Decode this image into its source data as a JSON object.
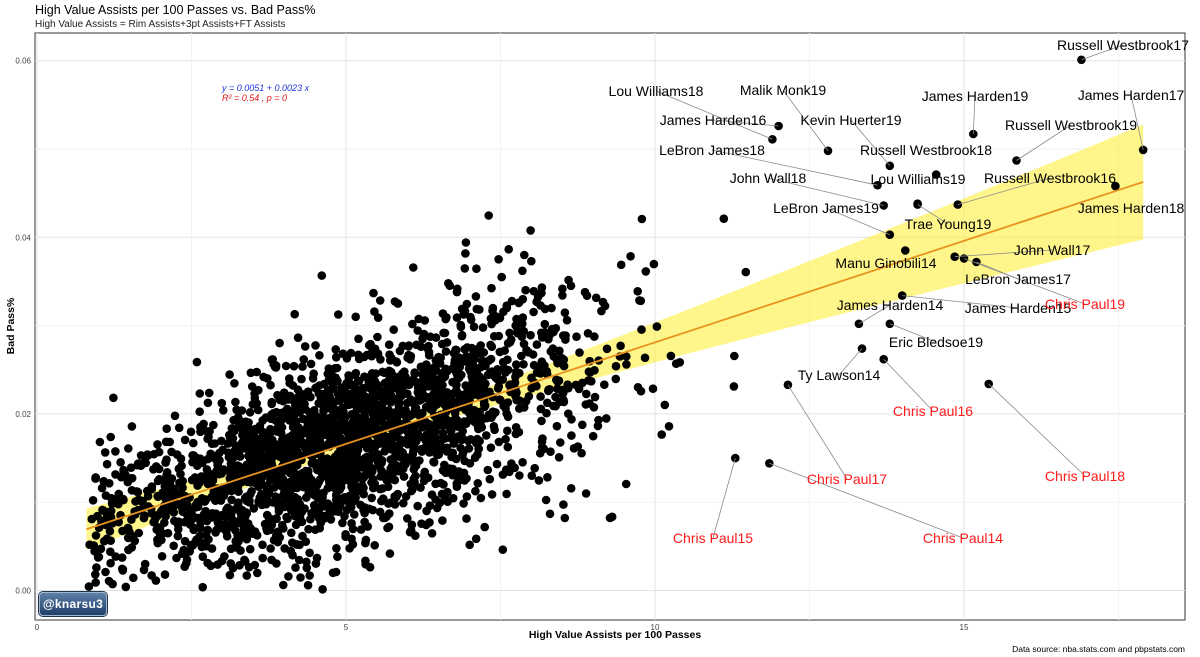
{
  "chart_data": {
    "type": "scatter",
    "title": "High Value Assists per 100 Passes vs. Bad Pass%",
    "subtitle": "High Value Assists = Rim Assists+3pt Assists+FT Assists",
    "xlabel": "High Value Assists per 100 Passes",
    "ylabel": "Bad Pass%",
    "xlim": [
      0,
      18.5
    ],
    "ylim": [
      -0.0035,
      0.0635
    ],
    "x_ticks": [
      "0",
      "5",
      "10",
      "15"
    ],
    "x_tick_values": [
      0,
      5,
      10,
      15
    ],
    "y_ticks": [
      "0.00",
      "0.02",
      "0.04",
      "0.06"
    ],
    "y_tick_values": [
      0.0,
      0.02,
      0.04,
      0.06
    ],
    "grid": true,
    "regression": {
      "equation": "y = 0.0051 + 0.0023 x",
      "stats": "R² = 0.54 , p = 0",
      "intercept": 0.0051,
      "slope": 0.0023,
      "x_range": [
        0.8,
        17.9
      ],
      "line_color": "#e8921f",
      "band_color": "#ffef2b"
    },
    "background_cloud": {
      "description_count": 2400,
      "x_range": [
        0.8,
        12
      ],
      "y_range": [
        0.0,
        0.049
      ]
    },
    "labeled_points": [
      {
        "name": "Russell Westbrook17",
        "x": 16.9,
        "y": 0.0601,
        "color": "black"
      },
      {
        "name": "Russell Westbrook19",
        "x": 15.85,
        "y": 0.0487,
        "color": "black"
      },
      {
        "name": "Russell Westbrook18",
        "x": 14.55,
        "y": 0.0471,
        "color": "black"
      },
      {
        "name": "Russell Westbrook16",
        "x": 14.9,
        "y": 0.0437,
        "color": "black"
      },
      {
        "name": "James Harden19",
        "x": 15.15,
        "y": 0.0517,
        "color": "black"
      },
      {
        "name": "James Harden17",
        "x": 17.9,
        "y": 0.0499,
        "color": "black"
      },
      {
        "name": "James Harden18",
        "x": 17.45,
        "y": 0.0458,
        "color": "black"
      },
      {
        "name": "James Harden16",
        "x": 12.0,
        "y": 0.0526,
        "color": "black"
      },
      {
        "name": "James Harden15",
        "x": 14.0,
        "y": 0.0334,
        "color": "black"
      },
      {
        "name": "James Harden14",
        "x": 13.3,
        "y": 0.0302,
        "color": "black"
      },
      {
        "name": "Lou Williams18",
        "x": 11.9,
        "y": 0.0511,
        "color": "black"
      },
      {
        "name": "Lou Williams19",
        "x": 14.25,
        "y": 0.0438,
        "color": "black"
      },
      {
        "name": "Malik Monk19",
        "x": 12.8,
        "y": 0.0498,
        "color": "black"
      },
      {
        "name": "Kevin Huerter19",
        "x": 13.8,
        "y": 0.0481,
        "color": "black"
      },
      {
        "name": "LeBron James18",
        "x": 13.6,
        "y": 0.0459,
        "color": "black"
      },
      {
        "name": "LeBron James19",
        "x": 13.8,
        "y": 0.0403,
        "color": "black"
      },
      {
        "name": "LeBron James17",
        "x": 15.2,
        "y": 0.0372,
        "color": "black"
      },
      {
        "name": "John Wall18",
        "x": 13.7,
        "y": 0.0436,
        "color": "black"
      },
      {
        "name": "John Wall17",
        "x": 14.85,
        "y": 0.0378,
        "color": "black"
      },
      {
        "name": "Trae Young19",
        "x": 14.25,
        "y": 0.0437,
        "color": "black"
      },
      {
        "name": "Manu Ginobili14",
        "x": 14.05,
        "y": 0.0385,
        "color": "black"
      },
      {
        "name": "Eric Bledsoe19",
        "x": 13.8,
        "y": 0.0302,
        "color": "black"
      },
      {
        "name": "Ty Lawson14",
        "x": 13.35,
        "y": 0.0274,
        "color": "black"
      },
      {
        "name": "Chris Paul19",
        "x": 15.0,
        "y": 0.0376,
        "color": "red"
      },
      {
        "name": "Chris Paul18",
        "x": 15.4,
        "y": 0.0234,
        "color": "red"
      },
      {
        "name": "Chris Paul17",
        "x": 12.15,
        "y": 0.0233,
        "color": "red"
      },
      {
        "name": "Chris Paul16",
        "x": 13.7,
        "y": 0.0262,
        "color": "red"
      },
      {
        "name": "Chris Paul15",
        "x": 11.3,
        "y": 0.015,
        "color": "red"
      },
      {
        "name": "Chris Paul14",
        "x": 11.85,
        "y": 0.0144,
        "color": "red"
      }
    ],
    "caption": "Data source: nba.stats.com and pbpstats.com",
    "watermark": "@knarsu3"
  }
}
